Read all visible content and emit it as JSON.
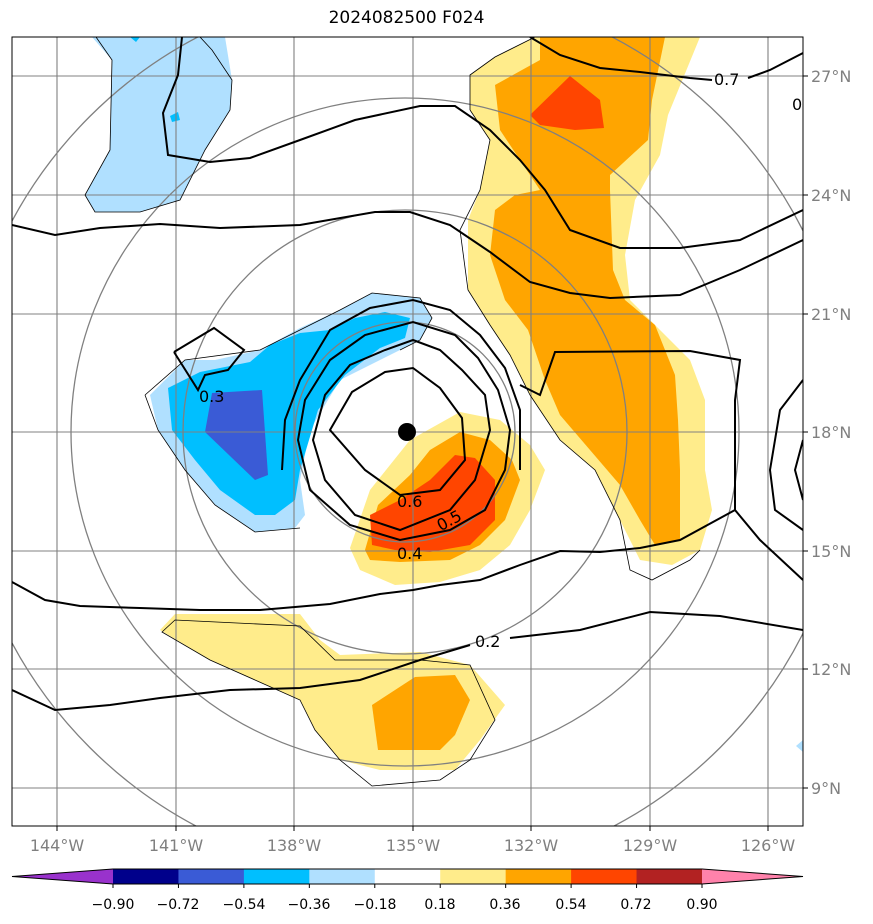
{
  "title": "2024082500 F024",
  "center_marker": {
    "lon": "135°W",
    "lat": "18°N"
  },
  "lat_labels": [
    "27°N",
    "24°N",
    "21°N",
    "18°N",
    "15°N",
    "12°N",
    "9°N"
  ],
  "lon_labels": [
    "144°W",
    "141°W",
    "138°W",
    "135°W",
    "132°W",
    "129°W",
    "126°W"
  ],
  "contour_labels": [
    "0.7",
    "0",
    "0.3",
    "0.6",
    "0.5",
    "0.4",
    "0.2"
  ],
  "colorbar": {
    "ticks": [
      "−0.90",
      "−0.72",
      "−0.54",
      "−0.36",
      "−0.18",
      "0.18",
      "0.36",
      "0.54",
      "0.72",
      "0.90"
    ],
    "colors": [
      "#9932cc",
      "#00008b",
      "#3a5bd6",
      "#00bfff",
      "#b0e0ff",
      "#ffffff",
      "#ffec8b",
      "#ffa500",
      "#ff4500",
      "#b22222",
      "#ff82ab"
    ]
  }
}
